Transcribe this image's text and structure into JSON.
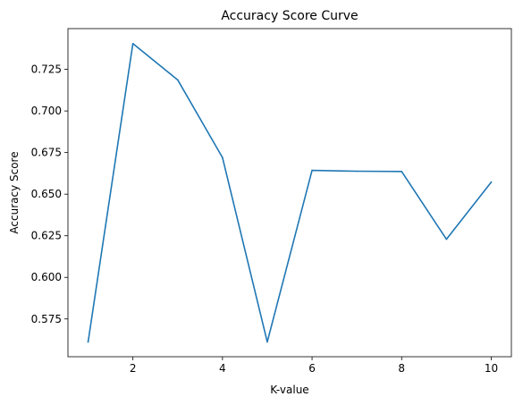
{
  "chart_data": {
    "type": "line",
    "title": "Accuracy Score Curve",
    "xlabel": "K-value",
    "ylabel": "Accuracy Score",
    "x": [
      1,
      2,
      3,
      4,
      5,
      6,
      7,
      8,
      9,
      10
    ],
    "series": [
      {
        "values": [
          0.5612,
          0.7405,
          0.7187,
          0.672,
          0.5612,
          0.6643,
          0.6638,
          0.6636,
          0.6229,
          0.6572
        ],
        "color": "#1f77b4"
      }
    ],
    "xlim": [
      0.55,
      10.45
    ],
    "ylim": [
      0.5523,
      0.7495
    ],
    "xticks": [
      2,
      4,
      6,
      8,
      10
    ],
    "xtick_labels": [
      "2",
      "4",
      "6",
      "8",
      "10"
    ],
    "yticks": [
      0.575,
      0.6,
      0.625,
      0.65,
      0.675,
      0.7,
      0.725
    ],
    "ytick_labels": [
      "0.575",
      "0.600",
      "0.625",
      "0.650",
      "0.675",
      "0.700",
      "0.725"
    ],
    "grid": false,
    "legend": "none"
  }
}
